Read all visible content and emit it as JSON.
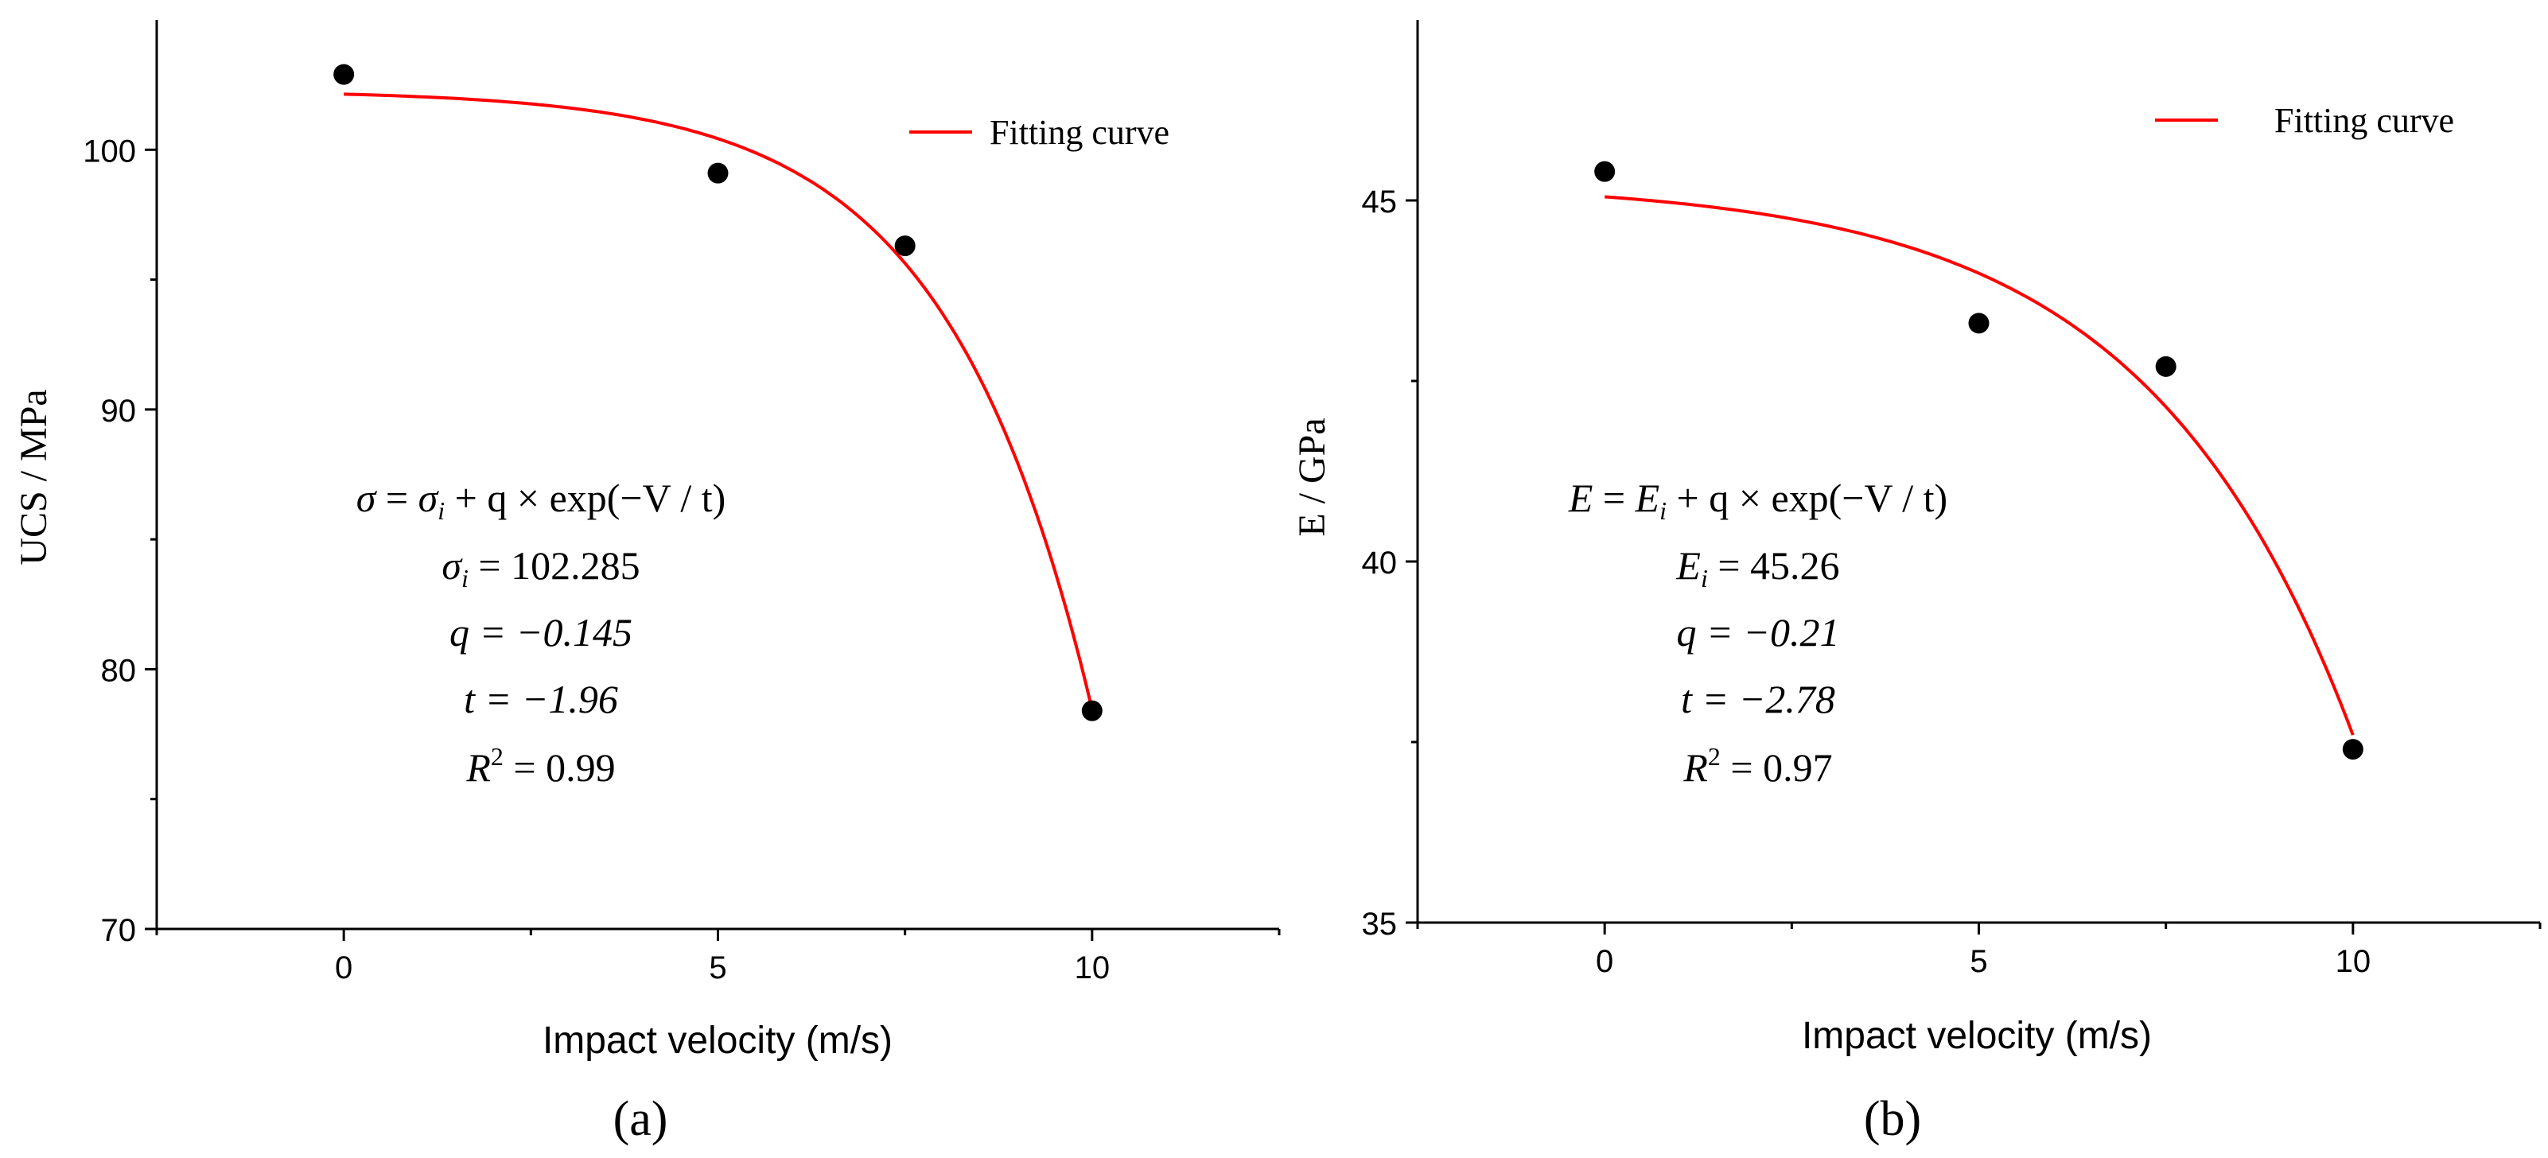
{
  "chart_data": [
    {
      "type": "scatter",
      "panel_label": "(a)",
      "xlabel": "Impact velocity (m/s)",
      "ylabel": "UCS / MPa",
      "xlim": [
        -2.5,
        12.5
      ],
      "ylim": [
        70,
        105
      ],
      "xticks": [
        0,
        5,
        10
      ],
      "yticks": [
        70,
        80,
        90,
        100
      ],
      "points": {
        "x": [
          0,
          5,
          7.5,
          10
        ],
        "y": [
          102.9,
          99.1,
          96.3,
          78.4
        ]
      },
      "fit": {
        "name": "Fitting curve",
        "color": "#ff0000",
        "yi": 102.285,
        "q": -0.145,
        "t": -1.96,
        "x_range": [
          0,
          10
        ]
      },
      "legend": {
        "label": "Fitting curve",
        "position": "top-right"
      },
      "equation": {
        "main": {
          "lhs": "σ",
          "r1": "σ",
          "r1_sub": "i",
          "mid": " + q × exp(−V / t)"
        },
        "line1": {
          "sym": "σ",
          "sub": "i",
          "rest": " = 102.285"
        },
        "line2": "q = −0.145",
        "line3": "t = −1.96",
        "line4": {
          "sym": "R",
          "sup": "2",
          "rest": " = 0.99"
        }
      }
    },
    {
      "type": "scatter",
      "panel_label": "(b)",
      "xlabel": "Impact velocity (m/s)",
      "ylabel": "E / GPa",
      "xlim": [
        -2.5,
        12.5
      ],
      "ylim": [
        35,
        47.5
      ],
      "xticks": [
        0,
        5,
        10
      ],
      "yticks": [
        35,
        40,
        45
      ],
      "points": {
        "x": [
          0,
          5,
          7.5,
          10
        ],
        "y": [
          45.4,
          43.3,
          42.7,
          37.4
        ]
      },
      "fit": {
        "name": "Fitting curve",
        "color": "#ff0000",
        "yi": 45.26,
        "q": -0.21,
        "t": -2.78,
        "x_range": [
          0,
          10
        ]
      },
      "legend": {
        "label": "Fitting curve",
        "position": "top-right"
      },
      "equation": {
        "main": {
          "lhs": "E",
          "r1": "E",
          "r1_sub": "i",
          "mid": " + q × exp(−V / t)"
        },
        "line1": {
          "sym": "E",
          "sub": "i",
          "rest": " = 45.26"
        },
        "line2": "q = −0.21",
        "line3": "t = −2.78",
        "line4": {
          "sym": "R",
          "sup": "2",
          "rest": " = 0.97"
        }
      }
    }
  ]
}
